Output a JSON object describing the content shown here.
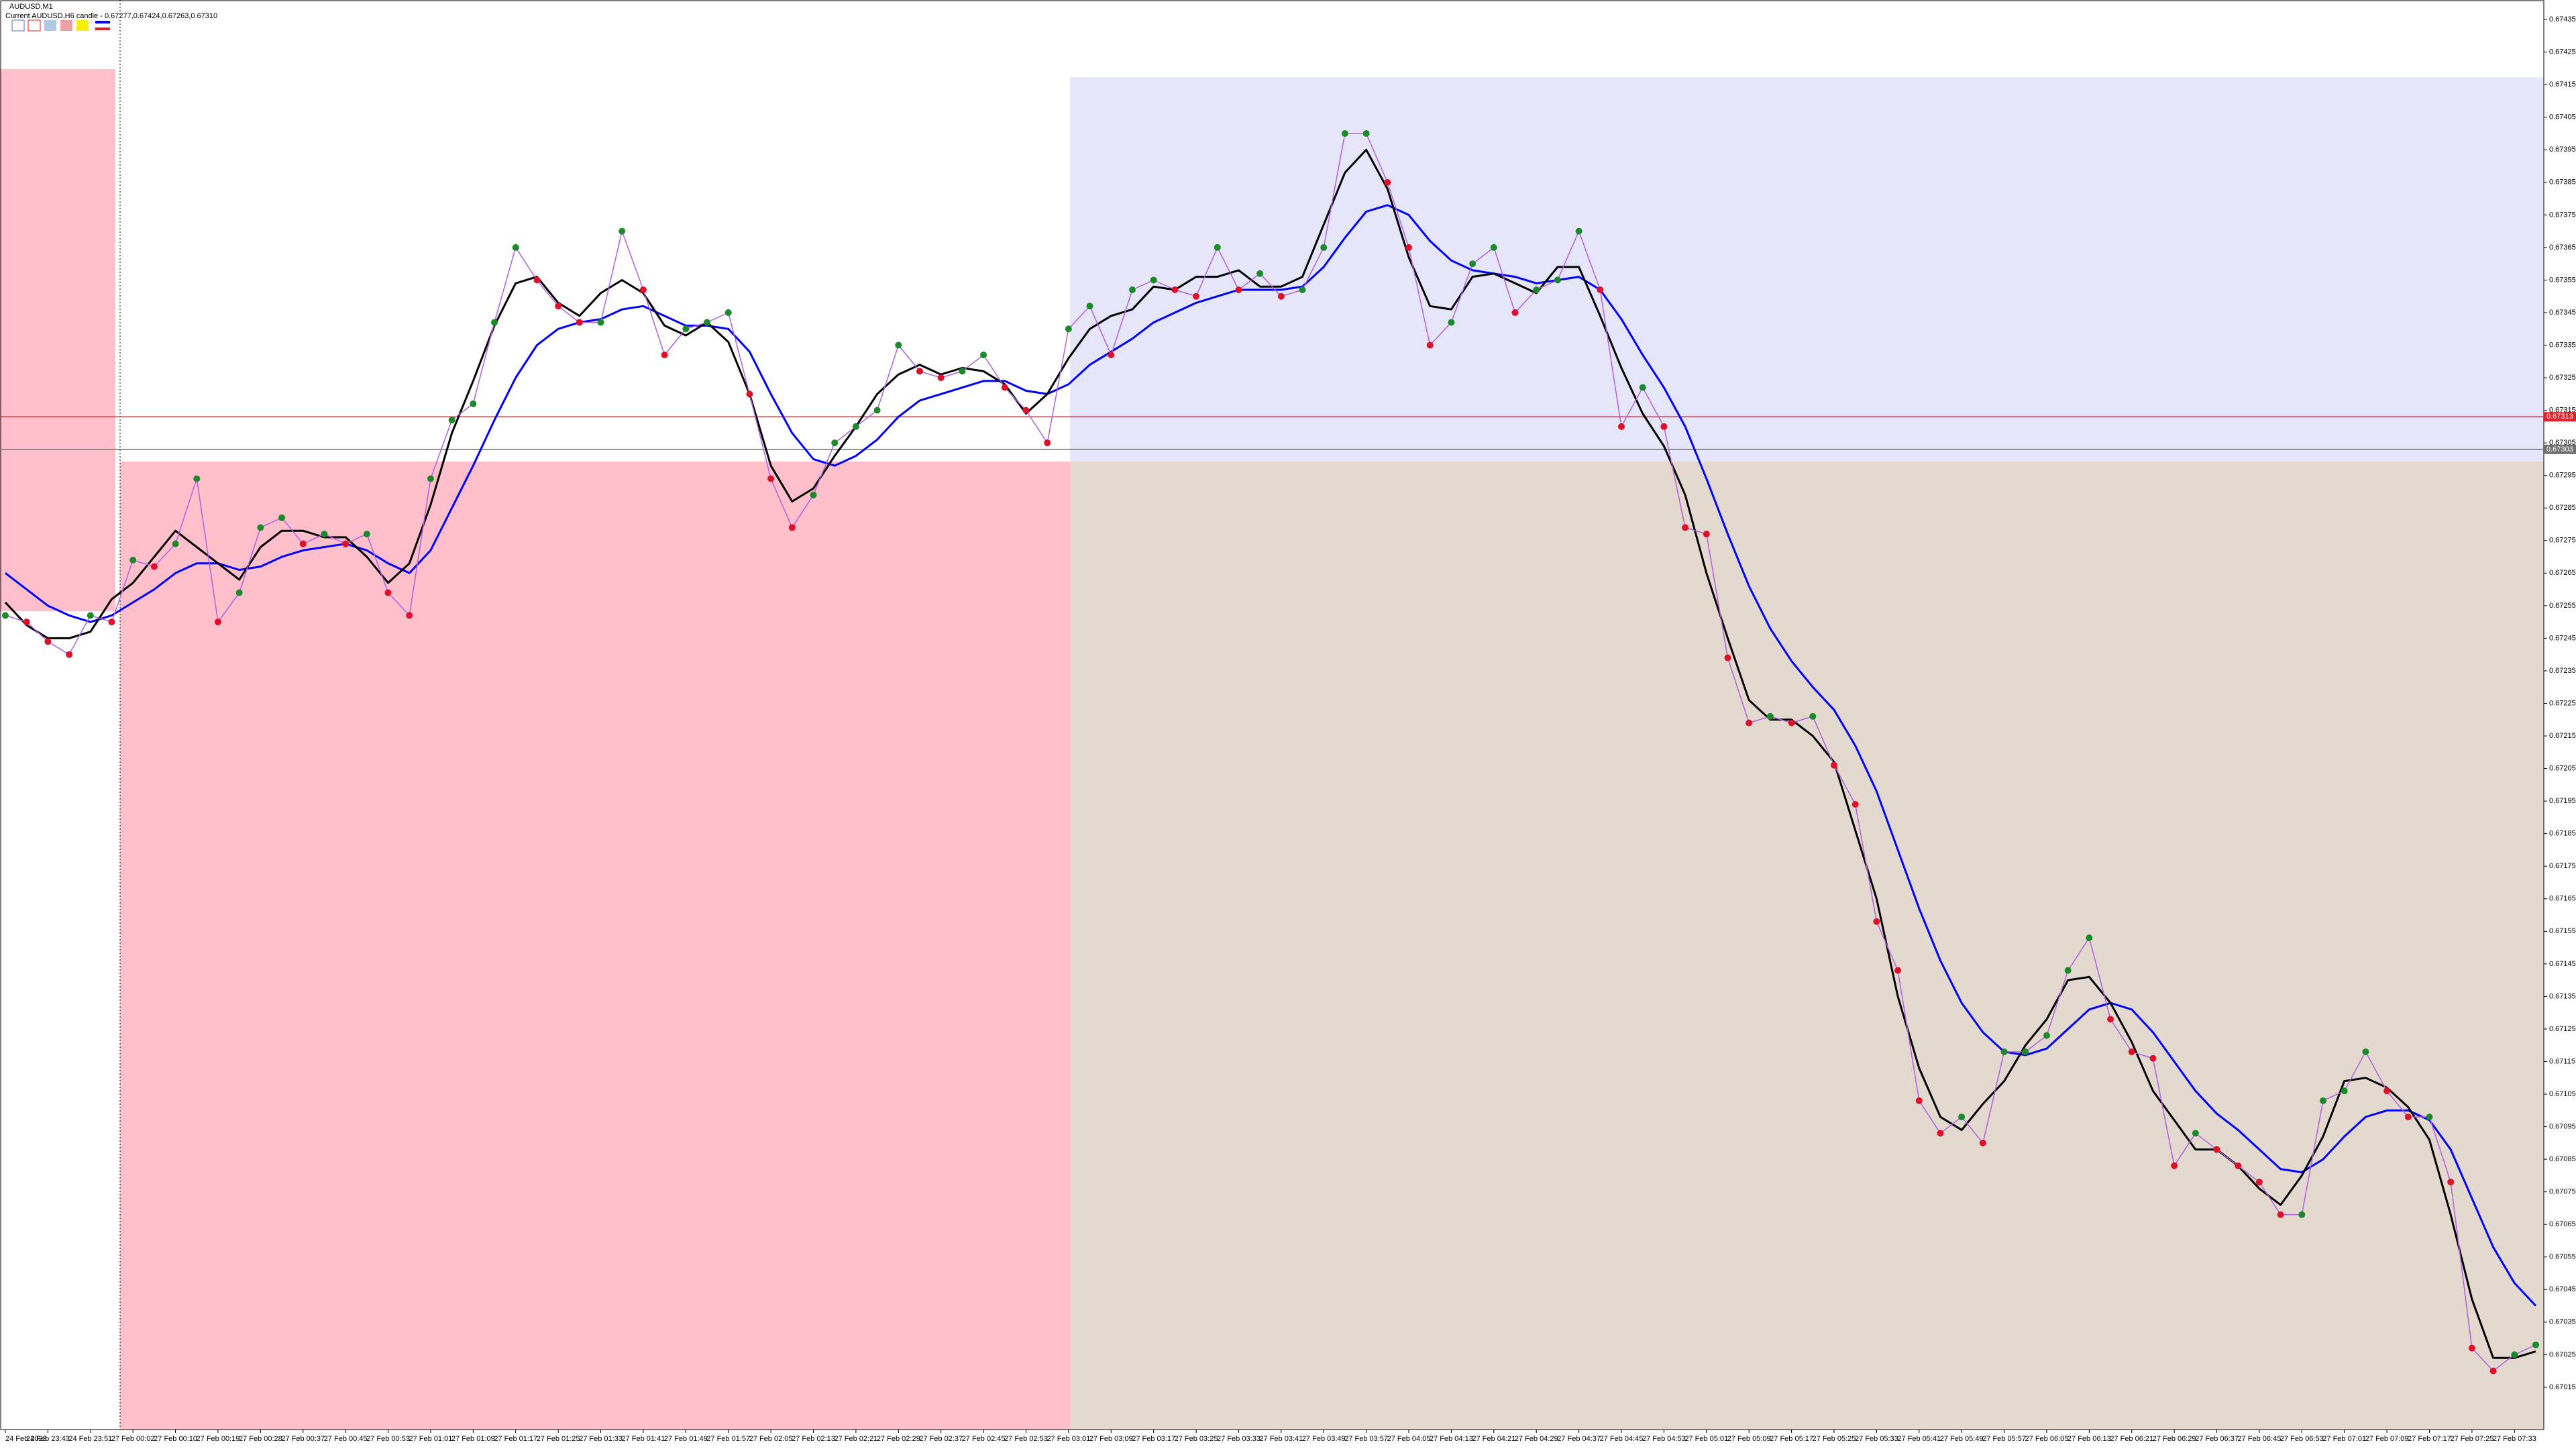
{
  "chart_data": {
    "type": "line",
    "title": "AUDUSD,M1",
    "subtitle": "Current AUDUSD,H6 candle - 0.67277,0.67424,0.67263,0.67310",
    "categories": [
      "24 Feb 2023",
      null,
      "24 Feb 23:43",
      null,
      "24 Feb 23:51",
      null,
      "27 Feb 00:02",
      null,
      "27 Feb 00:10",
      null,
      "27 Feb 00:19",
      null,
      "27 Feb 00:28",
      null,
      "27 Feb 00:37",
      null,
      "27 Feb 00:45",
      null,
      "27 Feb 00:53",
      null,
      "27 Feb 01:01",
      null,
      "27 Feb 01:09",
      null,
      "27 Feb 01:17",
      null,
      "27 Feb 01:25",
      null,
      "27 Feb 01:33",
      null,
      "27 Feb 01:41",
      null,
      "27 Feb 01:49",
      null,
      "27 Feb 01:57",
      null,
      "27 Feb 02:05",
      null,
      "27 Feb 02:13",
      null,
      "27 Feb 02:21",
      null,
      "27 Feb 02:29",
      null,
      "27 Feb 02:37",
      null,
      "27 Feb 02:45",
      null,
      "27 Feb 02:53",
      null,
      "27 Feb 03:01",
      null,
      "27 Feb 03:09",
      null,
      "27 Feb 03:17",
      null,
      "27 Feb 03:25",
      null,
      "27 Feb 03:33",
      null,
      "27 Feb 03:41",
      null,
      "27 Feb 03:49",
      null,
      "27 Feb 03:57",
      null,
      "27 Feb 04:05",
      null,
      "27 Feb 04:13",
      null,
      "27 Feb 04:21",
      null,
      "27 Feb 04:29",
      null,
      "27 Feb 04:37",
      null,
      "27 Feb 04:45",
      null,
      "27 Feb 04:53",
      null,
      "27 Feb 05:01",
      null,
      "27 Feb 05:09",
      null,
      "27 Feb 05:17",
      null,
      "27 Feb 05:25",
      null,
      "27 Feb 05:33",
      null,
      "27 Feb 05:41",
      null,
      "27 Feb 05:49",
      null,
      "27 Feb 05:57",
      null,
      "27 Feb 06:05",
      null,
      "27 Feb 06:13",
      null,
      "27 Feb 06:21",
      null,
      "27 Feb 06:29",
      null,
      "27 Feb 06:37",
      null,
      "27 Feb 06:45",
      null,
      "27 Feb 06:53",
      null,
      "27 Feb 07:01",
      null,
      "27 Feb 07:09",
      null,
      "27 Feb 07:17",
      null,
      "27 Feb 07:25",
      null,
      "27 Feb 07:33",
      null
    ],
    "series": [
      {
        "color": "#b060e0",
        "up_color": "#1a8a2a",
        "down_color": "#e0102a",
        "values": [
          0.67252,
          0.6725,
          0.67244,
          0.6724,
          0.67252,
          0.6725,
          0.67269,
          0.67267,
          0.67274,
          0.67294,
          0.6725,
          0.67259,
          0.67279,
          0.67282,
          0.67274,
          0.67277,
          0.67274,
          0.67277,
          0.67259,
          0.67252,
          0.67294,
          0.67312,
          0.67317,
          0.67342,
          0.67365,
          0.67355,
          0.67347,
          0.67342,
          0.67342,
          0.6737,
          0.67352,
          0.67332,
          0.6734,
          0.67342,
          0.67345,
          0.6732,
          0.67294,
          0.67279,
          0.67289,
          0.67305,
          0.6731,
          0.67315,
          0.67335,
          0.67327,
          0.67325,
          0.67327,
          0.67332,
          0.67322,
          0.67315,
          0.67305,
          0.6734,
          0.67347,
          0.67332,
          0.67352,
          0.67355,
          0.67352,
          0.6735,
          0.67365,
          0.67352,
          0.67357,
          0.6735,
          0.67352,
          0.67365,
          0.674,
          0.674,
          0.67385,
          0.67365,
          0.67335,
          0.67342,
          0.6736,
          0.67365,
          0.67345,
          0.67352,
          0.67355,
          0.6737,
          0.67352,
          0.6731,
          0.67322,
          0.6731,
          0.67279,
          0.67277,
          0.67239,
          0.67219,
          0.67221,
          0.67219,
          0.67221,
          0.67206,
          0.67194,
          0.67158,
          0.67143,
          0.67103,
          0.67093,
          0.67098,
          0.6709,
          0.67118,
          0.67118,
          0.67123,
          0.67143,
          0.67153,
          0.67128,
          0.67118,
          0.67116,
          0.67083,
          0.67093,
          0.67088,
          0.67083,
          0.67078,
          0.67068,
          0.67068,
          0.67103,
          0.67106,
          0.67118,
          0.67106,
          0.67098,
          0.67098,
          0.67078,
          0.67027,
          0.6702,
          0.67025,
          0.67028
        ]
      },
      {
        "color": "#000000",
        "values": [
          0.67256,
          0.67249,
          0.67245,
          0.67245,
          0.67247,
          0.67257,
          0.67262,
          0.6727,
          0.67278,
          0.67273,
          0.67268,
          0.67263,
          0.67273,
          0.67278,
          0.67278,
          0.67276,
          0.67276,
          0.6727,
          0.67262,
          0.67268,
          0.67286,
          0.67308,
          0.67324,
          0.67341,
          0.67354,
          0.67356,
          0.67348,
          0.67344,
          0.67351,
          0.67355,
          0.67351,
          0.67341,
          0.67338,
          0.67342,
          0.67336,
          0.6732,
          0.67298,
          0.67287,
          0.67291,
          0.67301,
          0.6731,
          0.6732,
          0.67326,
          0.67329,
          0.67326,
          0.67328,
          0.67327,
          0.67323,
          0.67314,
          0.6732,
          0.67331,
          0.6734,
          0.67344,
          0.67346,
          0.67353,
          0.67352,
          0.67356,
          0.67356,
          0.67358,
          0.67353,
          0.67353,
          0.67356,
          0.67372,
          0.67388,
          0.67395,
          0.67383,
          0.67362,
          0.67347,
          0.67346,
          0.67356,
          0.67357,
          0.67354,
          0.67351,
          0.67359,
          0.67359,
          0.67344,
          0.67328,
          0.67314,
          0.67304,
          0.67289,
          0.67265,
          0.67245,
          0.67226,
          0.6722,
          0.6722,
          0.67215,
          0.67207,
          0.67186,
          0.67165,
          0.67135,
          0.67113,
          0.67098,
          0.67094,
          0.67102,
          0.67109,
          0.6712,
          0.67128,
          0.6714,
          0.67141,
          0.67133,
          0.67121,
          0.67106,
          0.67097,
          0.67088,
          0.67088,
          0.67083,
          0.67076,
          0.67071,
          0.6708,
          0.67092,
          0.67109,
          0.6711,
          0.67107,
          0.67101,
          0.67091,
          0.67068,
          0.67042,
          0.67024,
          0.67024,
          0.67026
        ]
      },
      {
        "color": "#0000ff",
        "values": [
          0.67265,
          0.6726,
          0.67255,
          0.67252,
          0.6725,
          0.67252,
          0.67256,
          0.6726,
          0.67265,
          0.67268,
          0.67268,
          0.67266,
          0.67267,
          0.6727,
          0.67272,
          0.67273,
          0.67274,
          0.67272,
          0.67268,
          0.67265,
          0.67272,
          0.67285,
          0.67298,
          0.67312,
          0.67325,
          0.67335,
          0.6734,
          0.67342,
          0.67343,
          0.67346,
          0.67347,
          0.67344,
          0.67341,
          0.67341,
          0.6734,
          0.67333,
          0.6732,
          0.67308,
          0.673,
          0.67298,
          0.67301,
          0.67306,
          0.67313,
          0.67318,
          0.6732,
          0.67322,
          0.67324,
          0.67324,
          0.67321,
          0.6732,
          0.67323,
          0.67329,
          0.67333,
          0.67337,
          0.67342,
          0.67345,
          0.67348,
          0.6735,
          0.67352,
          0.67352,
          0.67352,
          0.67353,
          0.67359,
          0.67368,
          0.67376,
          0.67378,
          0.67375,
          0.67367,
          0.67361,
          0.67358,
          0.67357,
          0.67356,
          0.67354,
          0.67355,
          0.67356,
          0.67352,
          0.67343,
          0.67332,
          0.67322,
          0.6731,
          0.67294,
          0.67277,
          0.67261,
          0.67248,
          0.67238,
          0.6723,
          0.67223,
          0.67212,
          0.67198,
          0.6718,
          0.67162,
          0.67146,
          0.67133,
          0.67124,
          0.67118,
          0.67117,
          0.67119,
          0.67125,
          0.67131,
          0.67133,
          0.67131,
          0.67124,
          0.67115,
          0.67106,
          0.67099,
          0.67094,
          0.67088,
          0.67082,
          0.67081,
          0.67085,
          0.67092,
          0.67098,
          0.671,
          0.671,
          0.67097,
          0.67088,
          0.67073,
          0.67058,
          0.67047,
          0.6704
        ]
      }
    ],
    "ylim": [
      0.67002,
      0.67441
    ],
    "yticks": [
      0.67435,
      0.67425,
      0.67415,
      0.67405,
      0.67395,
      0.67385,
      0.67375,
      0.67365,
      0.67355,
      0.67345,
      0.67335,
      0.67325,
      0.67315,
      0.67305,
      0.67295,
      0.67285,
      0.67275,
      0.67265,
      0.67255,
      0.67245,
      0.67235,
      0.67225,
      0.67215,
      0.67205,
      0.67195,
      0.67185,
      0.67175,
      0.67165,
      0.67155,
      0.67145,
      0.67135,
      0.67125,
      0.67115,
      0.67105,
      0.67095,
      0.67085,
      0.67075,
      0.67065,
      0.67055,
      0.67045,
      0.67035,
      0.67025,
      0.67015
    ],
    "price_lines": [
      {
        "value": 0.67313,
        "label": "0.67313",
        "color": "#e0202a"
      },
      {
        "value": 0.67303,
        "label": "0.67303",
        "color": "#707070"
      }
    ],
    "grid": false
  }
}
